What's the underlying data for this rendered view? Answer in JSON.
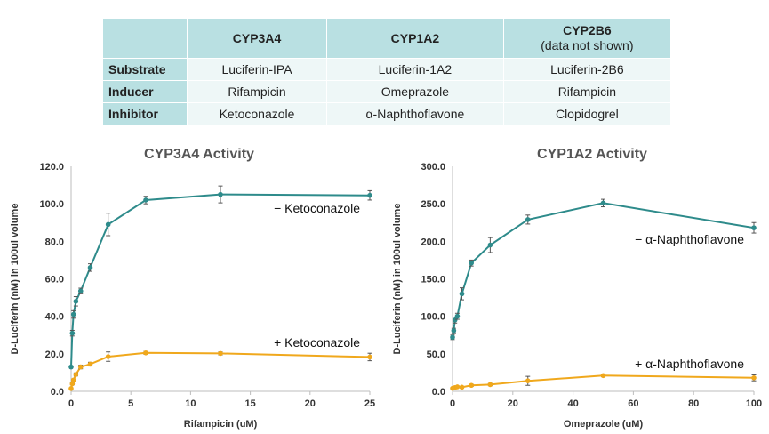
{
  "table": {
    "headers": [
      {
        "label": "CYP3A4",
        "note": ""
      },
      {
        "label": "CYP1A2",
        "note": ""
      },
      {
        "label": "CYP2B6",
        "note": "(data not shown)"
      }
    ],
    "rows": [
      {
        "label": "Substrate",
        "cells": [
          "Luciferin-IPA",
          "Luciferin-1A2",
          "Luciferin-2B6"
        ]
      },
      {
        "label": "Inducer",
        "cells": [
          "Rifampicin",
          "Omeprazole",
          "Rifampicin"
        ]
      },
      {
        "label": "Inhibitor",
        "cells": [
          "Ketoconazole",
          "α-Naphthoflavone",
          "Clopidogrel"
        ]
      }
    ]
  },
  "colors": {
    "minus_series": "#2e8b8b",
    "plus_series": "#f0a81c",
    "header_bg": "#b9e0e2",
    "cell_bg": "#eef7f7"
  },
  "chart_data": [
    {
      "type": "line",
      "title": "CYP3A4 Activity",
      "xlabel": "Rifampicin (uM)",
      "ylabel": "D-Luciferin (nM) in 100ul volume",
      "xlim": [
        0,
        25
      ],
      "ylim": [
        0,
        120
      ],
      "xticks": [
        0,
        5,
        10,
        15,
        20,
        25
      ],
      "yticks": [
        0,
        20,
        40,
        60,
        80,
        100,
        120
      ],
      "ytick_format": "0.0",
      "grid": false,
      "series": [
        {
          "name": "− Ketoconazole",
          "color": "#2e8b8b",
          "x": [
            0,
            0.1,
            0.2,
            0.4,
            0.8,
            1.6,
            3.1,
            6.25,
            12.5,
            25
          ],
          "y": [
            13,
            31,
            41,
            48,
            53.5,
            66,
            89,
            102,
            105,
            104.5
          ],
          "err": [
            0.5,
            1.5,
            2,
            2.5,
            1.5,
            2,
            6,
            2,
            4.5,
            2.5
          ]
        },
        {
          "name": "+ Ketoconazole",
          "color": "#f0a81c",
          "x": [
            0,
            0.1,
            0.2,
            0.4,
            0.8,
            1.6,
            3.1,
            6.25,
            12.5,
            25
          ],
          "y": [
            1.5,
            4,
            6,
            9,
            13,
            14.5,
            18.5,
            20.5,
            20.2,
            18.3
          ],
          "err": [
            0.3,
            0.5,
            0.5,
            0.8,
            1,
            1,
            2.5,
            0.8,
            0.8,
            2
          ]
        }
      ]
    },
    {
      "type": "line",
      "title": "CYP1A2 Activity",
      "xlabel": "Omeprazole (uM)",
      "ylabel": "D-Luciferin (nM) in 100ul volume",
      "xlim": [
        0,
        100
      ],
      "ylim": [
        0,
        300
      ],
      "xticks": [
        0,
        20,
        40,
        60,
        80,
        100
      ],
      "yticks": [
        0,
        50,
        100,
        150,
        200,
        250,
        300
      ],
      "ytick_format": "0.0",
      "grid": false,
      "series": [
        {
          "name": "− α-Naphthoflavone",
          "color": "#2e8b8b",
          "x": [
            0,
            0.4,
            0.8,
            1.6,
            3.1,
            6.25,
            12.5,
            25,
            50,
            100
          ],
          "y": [
            72,
            81,
            95,
            100,
            130,
            171,
            195,
            229,
            251,
            218
          ],
          "err": [
            3,
            3,
            4,
            4,
            8,
            4,
            10,
            6,
            5,
            7
          ]
        },
        {
          "name": "+ α-Naphthoflavone",
          "color": "#f0a81c",
          "x": [
            0,
            0.4,
            0.8,
            1.6,
            3.1,
            6.25,
            12.5,
            25,
            50,
            100
          ],
          "y": [
            4,
            4.5,
            5,
            6,
            5.5,
            8,
            9,
            14,
            21,
            18
          ],
          "err": [
            1,
            1,
            1,
            1,
            1,
            1.5,
            1.5,
            6,
            1.5,
            4
          ]
        }
      ]
    }
  ]
}
